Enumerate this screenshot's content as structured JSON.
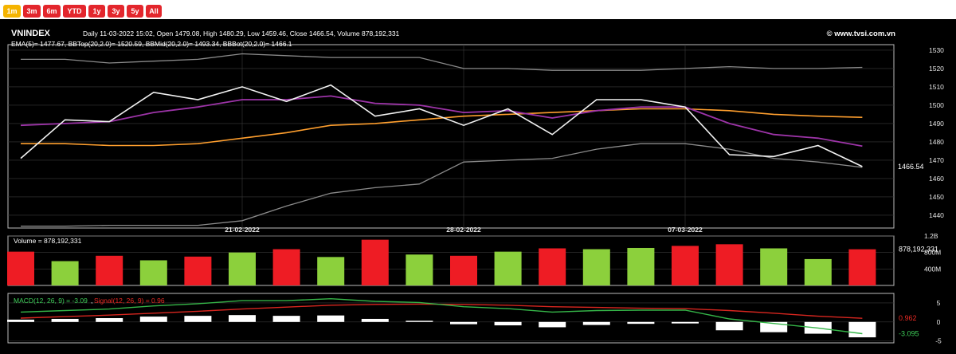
{
  "range_buttons": [
    {
      "label": "1m",
      "active": true
    },
    {
      "label": "3m",
      "active": false
    },
    {
      "label": "6m",
      "active": false
    },
    {
      "label": "YTD",
      "active": false
    },
    {
      "label": "1y",
      "active": false
    },
    {
      "label": "3y",
      "active": false
    },
    {
      "label": "5y",
      "active": false
    },
    {
      "label": "All",
      "active": false
    }
  ],
  "colors": {
    "background": "#000000",
    "active_button": "#f5b400",
    "inactive_button": "#e3262c",
    "close_line": "#f2f2f2",
    "ema_line": "#9d34a8",
    "bb_mid": "#ff9f2e",
    "bb_bands": "#8a8a8a",
    "volume_up": "#8cd03c",
    "volume_down": "#ee1c24",
    "macd_line": "#35b548",
    "signal_line": "#d8261f",
    "histogram": "#ffffff",
    "axis_text": "#e6e6e6"
  },
  "chart_data": [
    {
      "type": "line",
      "title": "VNINDEX",
      "subtitle": "Daily 11-03-2022 15:02, Open 1479.08, High 1480.29, Low 1459.46, Close 1466.54, Volume 878,192,331",
      "watermark": "© www.tvsi.com.vn",
      "indicator_label": "EMA(5)= 1477.67, BBTop(20,2.0)= 1520.59, BBMid(20,2.0)= 1493.34, BBBot(20,2.0)= 1466.1",
      "last_value_label": "1466.54",
      "x_tick_labels": [
        {
          "label": "21-02-2022",
          "index": 5
        },
        {
          "label": "28-02-2022",
          "index": 10
        },
        {
          "label": "07-03-2022",
          "index": 15
        }
      ],
      "y_ticks": [
        1440,
        1450,
        1460,
        1470,
        1480,
        1490,
        1500,
        1510,
        1520,
        1530
      ],
      "ylim": [
        1433,
        1533
      ],
      "grid": true,
      "series": [
        {
          "key": "close",
          "values": [
            1471,
            1492,
            1491,
            1507,
            1503,
            1510,
            1502,
            1511,
            1494,
            1498,
            1489,
            1498,
            1484,
            1503,
            1503,
            1499,
            1473,
            1472,
            1478,
            1466.54
          ]
        },
        {
          "key": "ema",
          "values": [
            1489,
            1490,
            1491,
            1496,
            1499,
            1503,
            1503,
            1505,
            1501,
            1500,
            1496,
            1497,
            1493,
            1497,
            1499,
            1499,
            1490,
            1484,
            1482,
            1477.67
          ]
        },
        {
          "key": "bb_mid",
          "values": [
            1479,
            1479,
            1478,
            1478,
            1479,
            1482,
            1485,
            1489,
            1490,
            1492,
            1494,
            1495,
            1496,
            1497,
            1498,
            1498,
            1497,
            1495,
            1494,
            1493.34
          ]
        },
        {
          "key": "bb_top",
          "values": [
            1525,
            1525,
            1523,
            1524,
            1525,
            1528,
            1527,
            1526,
            1526,
            1526,
            1520,
            1520,
            1519,
            1519,
            1519,
            1520,
            1521,
            1520,
            1520,
            1520.59
          ]
        },
        {
          "key": "bb_bot",
          "values": [
            1434,
            1434,
            1434.5,
            1434.5,
            1434.5,
            1437,
            1445,
            1452,
            1455,
            1457,
            1469,
            1470,
            1471,
            1476,
            1479,
            1479,
            1476,
            1471,
            1469,
            1466.1
          ]
        }
      ]
    },
    {
      "type": "bar",
      "label": "Volume = 878,192,331",
      "y_ticks": [
        {
          "value": 1200,
          "label": "1.2B"
        },
        {
          "value": 800,
          "label": "800M"
        },
        {
          "value": 400,
          "label": "400M"
        }
      ],
      "last_value_label": "878,192,331",
      "ylim": [
        0,
        1200
      ],
      "values": [
        820,
        590,
        720,
        610,
        700,
        800,
        880,
        690,
        1110,
        750,
        720,
        820,
        900,
        880,
        910,
        960,
        1000,
        900,
        640,
        878
      ],
      "direction": [
        "down",
        "up",
        "down",
        "up",
        "down",
        "up",
        "down",
        "up",
        "down",
        "up",
        "down",
        "up",
        "down",
        "up",
        "up",
        "down",
        "down",
        "up",
        "up",
        "down"
      ]
    },
    {
      "type": "bar",
      "macd_label": "MACD(12, 26, 9) = -3.09",
      "signal_label": "Signal(12, 26, 9) = 0.96",
      "y_ticks": [
        5,
        0,
        -5
      ],
      "ylim": [
        -5.5,
        7.5
      ],
      "signal_value_label": "0.962",
      "macd_value_label": "-3.095",
      "macd": [
        2.6,
        3.0,
        3.4,
        4.2,
        4.8,
        5.6,
        5.6,
        6.1,
        5.4,
        5.1,
        4.0,
        3.5,
        2.6,
        3.0,
        3.1,
        3.1,
        0.8,
        -0.4,
        -1.6,
        -3.09
      ],
      "signal": [
        1.0,
        1.4,
        1.8,
        2.3,
        2.8,
        3.4,
        3.9,
        4.4,
        4.6,
        4.7,
        4.6,
        4.4,
        4.0,
        3.8,
        3.6,
        3.5,
        3.0,
        2.3,
        1.5,
        0.96
      ],
      "histogram": [
        0.6,
        0.8,
        1.0,
        1.4,
        1.6,
        1.8,
        1.6,
        1.7,
        0.8,
        0.3,
        -0.6,
        -0.9,
        -1.4,
        -0.8,
        -0.5,
        -0.4,
        -2.2,
        -2.7,
        -3.1,
        -4.05
      ]
    }
  ]
}
